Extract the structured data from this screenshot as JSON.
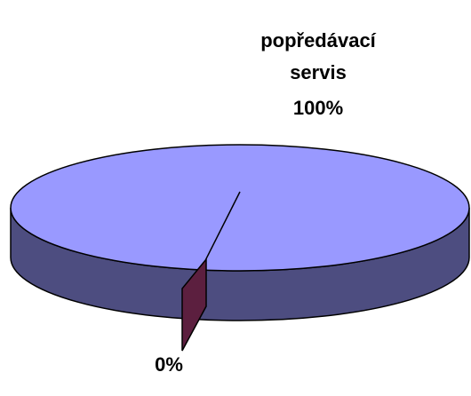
{
  "chart_data": {
    "type": "pie",
    "three_d": true,
    "categories": [
      "popředávací servis",
      null
    ],
    "values": [
      100,
      0
    ],
    "value_labels": [
      "100%",
      "0%"
    ],
    "colors": [
      "#9999ff",
      "#5c1f3f"
    ]
  }
}
